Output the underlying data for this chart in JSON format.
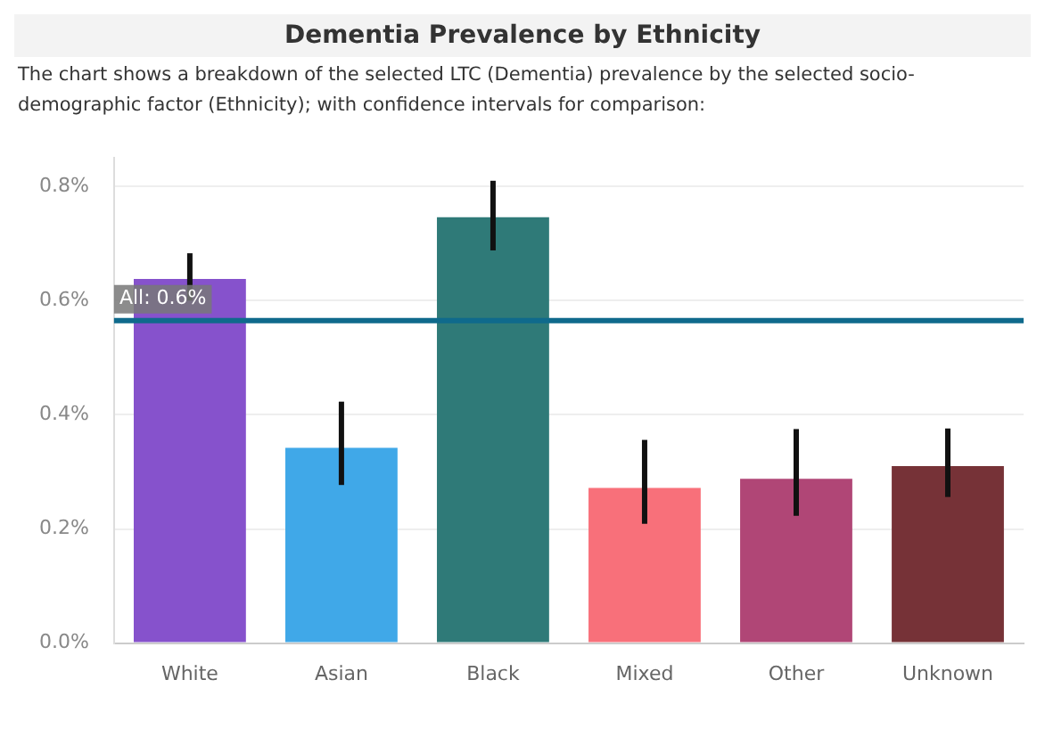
{
  "chart_data": {
    "type": "bar",
    "title": "Dementia Prevalence by Ethnicity",
    "subtitle": "The chart shows a breakdown of the selected LTC (Dementia) prevalence by the selected socio-demographic factor (Ethnicity); with confidence intervals for comparison:",
    "categories": [
      "White",
      "Asian",
      "Black",
      "Mixed",
      "Other",
      "Unknown"
    ],
    "values": [
      0.638,
      0.342,
      0.746,
      0.272,
      0.288,
      0.31
    ],
    "colors": [
      "#8652cc",
      "#40a8e8",
      "#2f7a78",
      "#f8707a",
      "#b04676",
      "#763237"
    ],
    "errors": [
      [
        0.6,
        0.683
      ],
      [
        0.277,
        0.423
      ],
      [
        0.688,
        0.81
      ],
      [
        0.209,
        0.356
      ],
      [
        0.223,
        0.375
      ],
      [
        0.256,
        0.376
      ]
    ],
    "ylim": [
      0,
      0.85
    ],
    "yticks": [
      {
        "value": 0,
        "label": "0.0%"
      },
      {
        "value": 0.2,
        "label": "0.2%"
      },
      {
        "value": 0.4,
        "label": "0.4%"
      },
      {
        "value": 0.6,
        "label": "0.6%"
      },
      {
        "value": 0.8,
        "label": "0.8%"
      }
    ],
    "ref_lines": [
      {
        "axis": "y",
        "value": 0.565,
        "label": "All: 0.6%",
        "color": "#0f6a8c"
      }
    ],
    "grid": "y",
    "legend": false
  }
}
